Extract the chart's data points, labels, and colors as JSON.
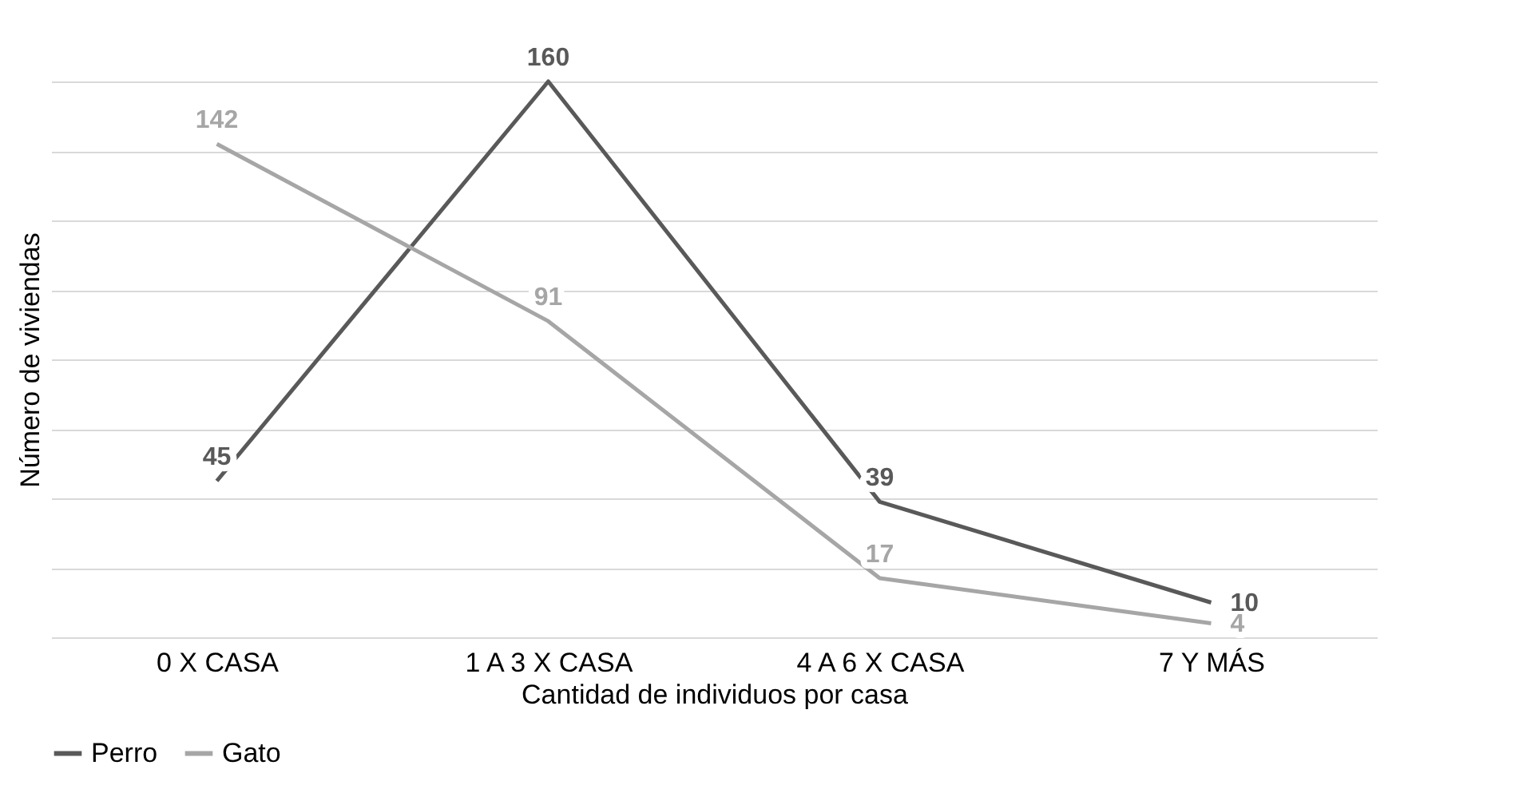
{
  "chart_data": {
    "type": "line",
    "xlabel": "Cantidad de individuos por casa",
    "ylabel": "Número de viviendas",
    "categories": [
      "0 X CASA",
      "1 A 3 X CASA",
      "4 A 6 X CASA",
      "7 Y MÁS"
    ],
    "series": [
      {
        "name": "Perro",
        "color": "#595959",
        "values": [
          45,
          160,
          39,
          10
        ]
      },
      {
        "name": "Gato",
        "color": "#a6a6a6",
        "values": [
          142,
          91,
          17,
          4
        ]
      }
    ],
    "grid": "y",
    "legend": "bottom",
    "tick_labels": "x",
    "data_labels": true,
    "line_style": "solid"
  }
}
